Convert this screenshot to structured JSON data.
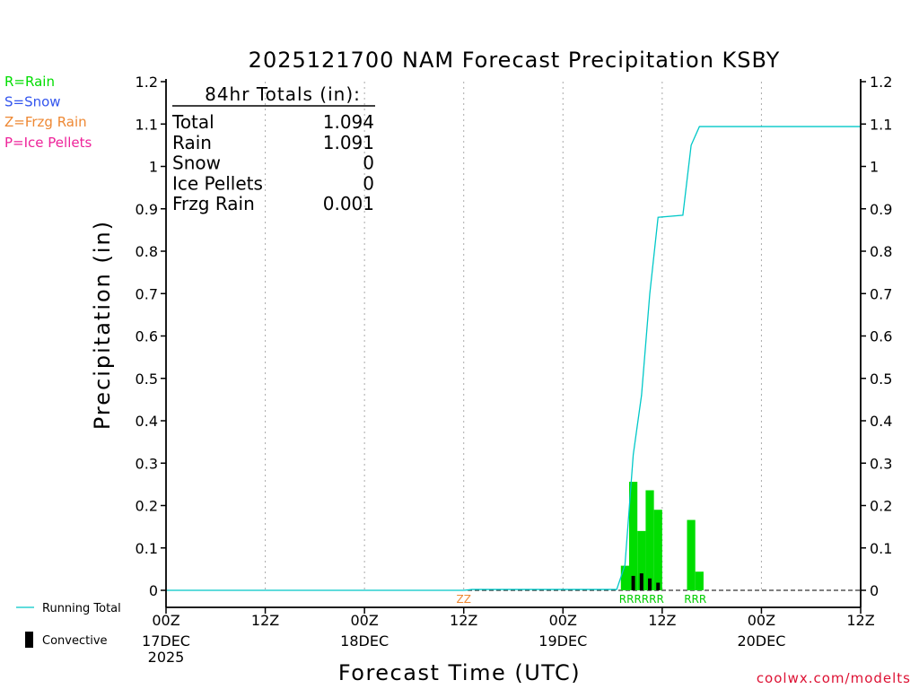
{
  "chart_data": {
    "type": "bar",
    "title": "2025121700 NAM Forecast Precipitation KSBY",
    "xlabel": "Forecast Time (UTC)",
    "ylabel": "Precipitation (in)",
    "xlim": [
      0,
      84
    ],
    "ylim": [
      0,
      1.2
    ],
    "y_ticks": [
      0,
      0.1,
      0.2,
      0.3,
      0.4,
      0.5,
      0.6,
      0.7,
      0.8,
      0.9,
      1,
      1.1,
      1.2
    ],
    "y_tick_labels": [
      "0",
      "0.1",
      "0.2",
      "0.3",
      "0.4",
      "0.5",
      "0.6",
      "0.7",
      "0.8",
      "0.9",
      "1",
      "1.1",
      "1.2"
    ],
    "x_ticks": [
      {
        "hour": 0,
        "label": "00Z",
        "sub": "17DEC",
        "sub2": "2025"
      },
      {
        "hour": 12,
        "label": "12Z",
        "sub": "",
        "sub2": ""
      },
      {
        "hour": 24,
        "label": "00Z",
        "sub": "18DEC",
        "sub2": ""
      },
      {
        "hour": 36,
        "label": "12Z",
        "sub": "",
        "sub2": ""
      },
      {
        "hour": 48,
        "label": "00Z",
        "sub": "19DEC",
        "sub2": ""
      },
      {
        "hour": 60,
        "label": "12Z",
        "sub": "",
        "sub2": ""
      },
      {
        "hour": 72,
        "label": "00Z",
        "sub": "20DEC",
        "sub2": ""
      },
      {
        "hour": 84,
        "label": "12Z",
        "sub": "",
        "sub2": ""
      }
    ],
    "grid_x": "dotted vertical at each 12h",
    "series": [
      {
        "name": "Running Total",
        "type": "line",
        "color": "#00c8c8",
        "points": [
          [
            0,
            0
          ],
          [
            36,
            0
          ],
          [
            37,
            0.002
          ],
          [
            48,
            0.002
          ],
          [
            54.5,
            0.002
          ],
          [
            55.5,
            0.06
          ],
          [
            56.5,
            0.32
          ],
          [
            57.5,
            0.46
          ],
          [
            58.5,
            0.7
          ],
          [
            59.5,
            0.88
          ],
          [
            62.5,
            0.885
          ],
          [
            63.5,
            1.05
          ],
          [
            64.5,
            1.094
          ],
          [
            84,
            1.094
          ]
        ]
      },
      {
        "name": "Rain",
        "type": "bar",
        "color": "#00dd00",
        "bars": [
          {
            "hour": 55.5,
            "value": 0.058
          },
          {
            "hour": 56.5,
            "value": 0.256
          },
          {
            "hour": 57.5,
            "value": 0.14
          },
          {
            "hour": 58.5,
            "value": 0.236
          },
          {
            "hour": 59.5,
            "value": 0.19
          },
          {
            "hour": 63.5,
            "value": 0.166
          },
          {
            "hour": 64.5,
            "value": 0.044
          }
        ]
      },
      {
        "name": "Convective",
        "type": "bar",
        "color": "#000000",
        "bars": [
          {
            "hour": 56.5,
            "value": 0.034
          },
          {
            "hour": 57.5,
            "value": 0.04
          },
          {
            "hour": 58.5,
            "value": 0.028
          },
          {
            "hour": 59.5,
            "value": 0.018
          }
        ]
      }
    ],
    "type_markers": [
      {
        "hour": 36,
        "text": "ZZ",
        "color": "#ee8833"
      },
      {
        "hour": 57.5,
        "text": "RRRRRR",
        "color": "#00cc00"
      },
      {
        "hour": 64,
        "text": "RRR",
        "color": "#00cc00"
      }
    ]
  },
  "totals": {
    "header": "84hr Totals (in):",
    "rows": [
      {
        "label": "Total",
        "value": "1.094"
      },
      {
        "label": "Rain",
        "value": "1.091"
      },
      {
        "label": "Snow",
        "value": "0"
      },
      {
        "label": "Ice Pellets",
        "value": "0"
      },
      {
        "label": "Frzg Rain",
        "value": "0.001"
      }
    ]
  },
  "type_legend": [
    {
      "text": "R=Rain",
      "color": "#00dd00"
    },
    {
      "text": "S=Snow",
      "color": "#3355ee"
    },
    {
      "text": "Z=Frzg Rain",
      "color": "#ee8833"
    },
    {
      "text": "P=Ice Pellets",
      "color": "#ee2299"
    }
  ],
  "series_legend": {
    "running_total": "Running Total",
    "convective": "Convective"
  },
  "credit": "coolwx.com/modelts"
}
